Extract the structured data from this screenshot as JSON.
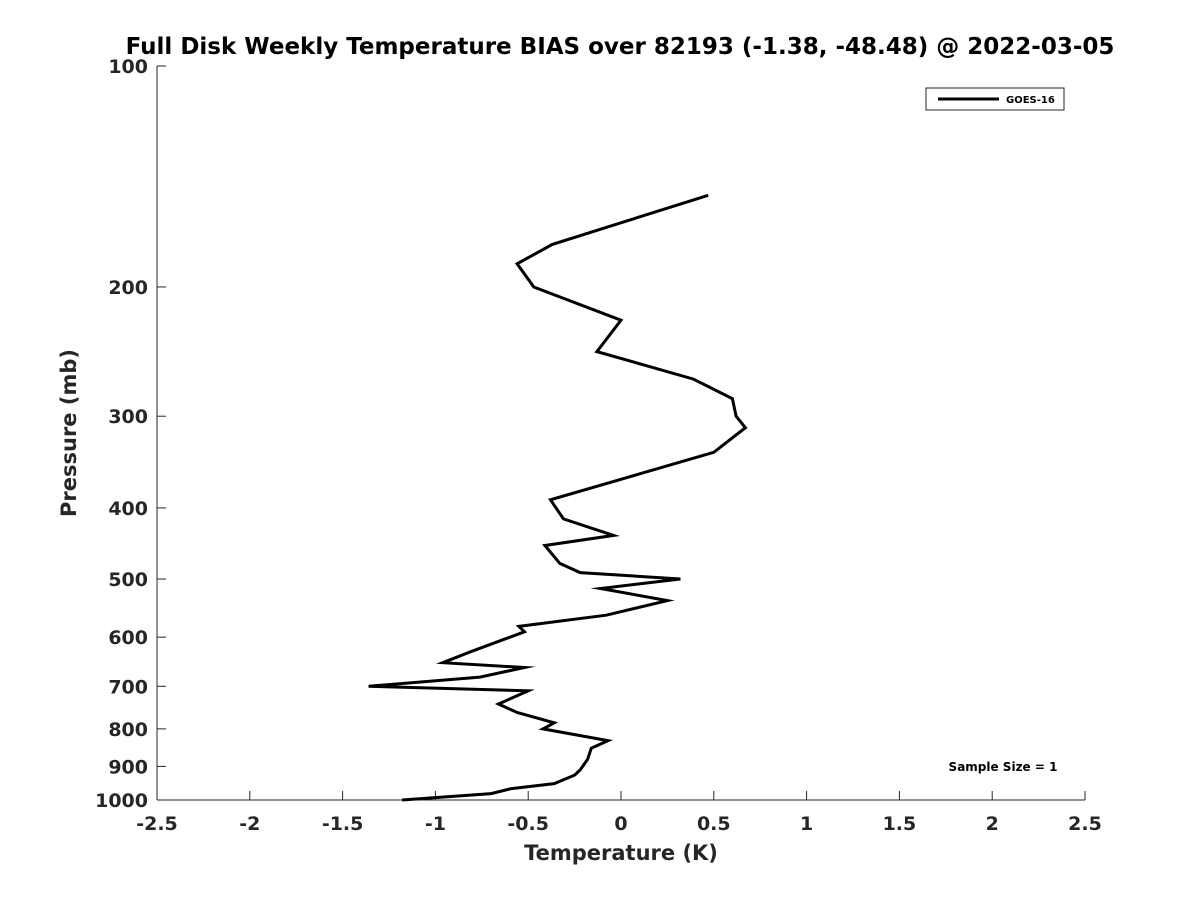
{
  "chart_data": {
    "type": "line",
    "title": "Full Disk Weekly Temperature BIAS over 82193 (-1.38, -48.48) @ 2022-03-05",
    "xlabel": "Temperature (K)",
    "ylabel": "Pressure (mb)",
    "xlim": [
      -2.5,
      2.5
    ],
    "ylim": [
      100,
      1000
    ],
    "y_scale": "log",
    "y_reversed": true,
    "x_ticks": [
      -2.5,
      -2,
      -1.5,
      -1,
      -0.5,
      0,
      0.5,
      1,
      1.5,
      2,
      2.5
    ],
    "x_tick_labels": [
      "-2.5",
      "-2",
      "-1.5",
      "-1",
      "-0.5",
      "0",
      "0.5",
      "1",
      "1.5",
      "2",
      "2.5"
    ],
    "y_ticks": [
      100,
      200,
      300,
      400,
      500,
      600,
      700,
      800,
      900,
      1000
    ],
    "y_tick_labels": [
      "100",
      "200",
      "300",
      "400",
      "500",
      "600",
      "700",
      "800",
      "900",
      "1000"
    ],
    "grid": false,
    "legend_position": "top-right",
    "series": [
      {
        "name": "GOES-16",
        "color": "#000000",
        "x": [
          0.47,
          -0.37,
          -0.56,
          -0.47,
          0,
          -0.13,
          0.39,
          0.6,
          0.62,
          0.67,
          0.5,
          -0.38,
          -0.31,
          -0.04,
          -0.41,
          -0.33,
          -0.22,
          0.32,
          -0.11,
          0.25,
          -0.08,
          -0.55,
          -0.52,
          -0.81,
          -0.96,
          -0.52,
          -0.76,
          -1.36,
          -0.5,
          -0.66,
          -0.56,
          -0.36,
          -0.42,
          -0.07,
          -0.16,
          -0.18,
          -0.22,
          -0.25,
          -0.36,
          -0.59,
          -0.7,
          -1.18
        ],
        "y": [
          150,
          175,
          186,
          200,
          222,
          245,
          267,
          284,
          300,
          311,
          336,
          390,
          414,
          436,
          450,
          476,
          490,
          500,
          515,
          535,
          560,
          580,
          590,
          628,
          650,
          660,
          680,
          700,
          710,
          740,
          760,
          785,
          800,
          830,
          850,
          880,
          910,
          925,
          950,
          965,
          980,
          1000
        ]
      }
    ],
    "annotations": [
      "Sample Size = 1"
    ]
  }
}
